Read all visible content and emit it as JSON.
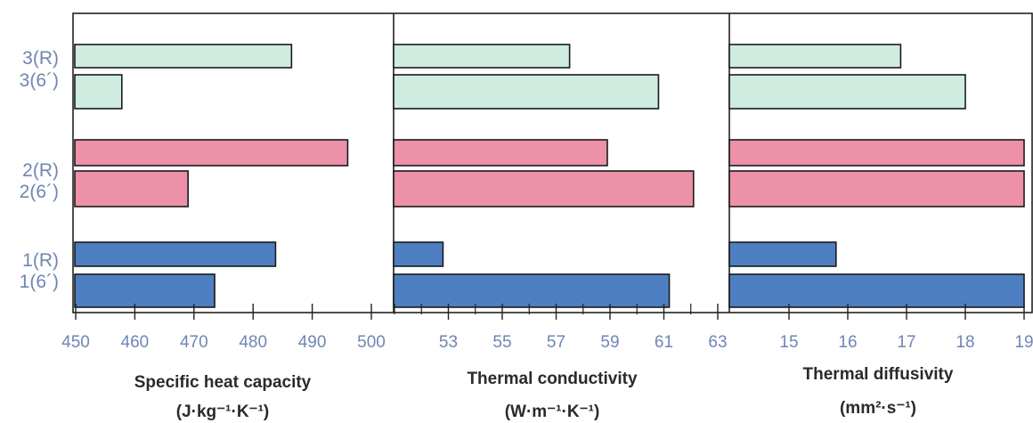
{
  "chart_data": {
    "type": "bar",
    "orientation": "horizontal",
    "categories": [
      "3(R)",
      "3(6´)",
      "2(R)",
      "2(6´)",
      "1(R)",
      "1(6´)"
    ],
    "category_labels": [
      "3(R)",
      "3(6´)",
      "2(R)",
      "2(6´)",
      "1(R)",
      "1(6´)"
    ],
    "colors": {
      "group3": "#cfece0",
      "group2": "#ec91a8",
      "group1": "#4d7fc2",
      "tick": "#6f86b3",
      "axis": "#222222"
    },
    "panels": [
      {
        "title": "Specific heat capacity",
        "unit": "(J·kg⁻¹·K⁻¹)",
        "xlim": [
          450,
          500
        ],
        "xticks": [
          "450",
          "460",
          "470",
          "480",
          "490",
          "500"
        ],
        "values": [
          486.5,
          457.8,
          496.0,
          469.0,
          483.8,
          473.5
        ]
      },
      {
        "title": "Thermal conductivity",
        "unit": "(W·m⁻¹·K⁻¹)",
        "xlim": [
          51,
          63
        ],
        "xticks": [
          "53",
          "55",
          "57",
          "59",
          "61",
          "63"
        ],
        "values": [
          57.5,
          60.8,
          58.9,
          62.1,
          52.8,
          61.2
        ]
      },
      {
        "title": "Thermal diffusivity",
        "unit": "(mm²·s⁻¹)",
        "xlim": [
          14,
          19
        ],
        "xticks": [
          "15",
          "16",
          "17",
          "18",
          "19"
        ],
        "values": [
          16.9,
          18.0,
          19.0,
          19.0,
          15.8,
          19.0
        ]
      }
    ]
  }
}
